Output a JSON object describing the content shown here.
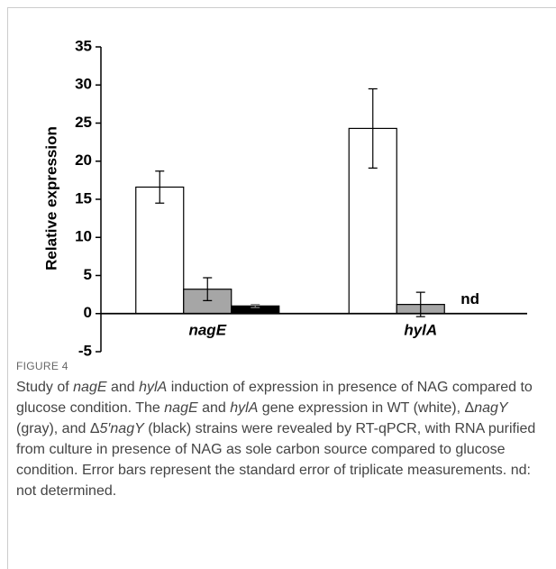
{
  "chart_data": {
    "type": "bar",
    "categories": [
      "nagE",
      "hylA"
    ],
    "series": [
      {
        "color": "#ffffff",
        "values": [
          16.6,
          24.3
        ],
        "errors": [
          2.1,
          5.2
        ]
      },
      {
        "color": "#a6a6a6",
        "values": [
          3.2,
          1.2
        ],
        "errors": [
          1.5,
          1.6
        ]
      },
      {
        "color": "#000000",
        "values": [
          1.0,
          null
        ],
        "errors": [
          0.2,
          null
        ]
      }
    ],
    "annotation": "nd",
    "y_label": "Relative expression",
    "ylim": [
      -5,
      35
    ],
    "yticks": [
      -5,
      0,
      5,
      10,
      15,
      20,
      25,
      30,
      35
    ],
    "grid": false
  },
  "caption": {
    "label": "FIGURE 4",
    "segments": [
      {
        "text": "Study of ",
        "italic": false
      },
      {
        "text": "nagE",
        "italic": true
      },
      {
        "text": " and ",
        "italic": false
      },
      {
        "text": "hylA",
        "italic": true
      },
      {
        "text": " induction of expression in presence of NAG compared to glucose condition. The ",
        "italic": false
      },
      {
        "text": "nagE",
        "italic": true
      },
      {
        "text": " and ",
        "italic": false
      },
      {
        "text": "hylA",
        "italic": true
      },
      {
        "text": " gene expression in WT (white), Δ",
        "italic": false
      },
      {
        "text": "nagY",
        "italic": true
      },
      {
        "text": " (gray), and Δ",
        "italic": false
      },
      {
        "text": "5′nagY",
        "italic": true
      },
      {
        "text": " (black) strains were revealed by RT-qPCR, with RNA purified from culture in presence of NAG as sole carbon source compared to glucose condition. Error bars represent the standard error of triplicate measurements. nd: not determined.",
        "italic": false
      }
    ]
  }
}
